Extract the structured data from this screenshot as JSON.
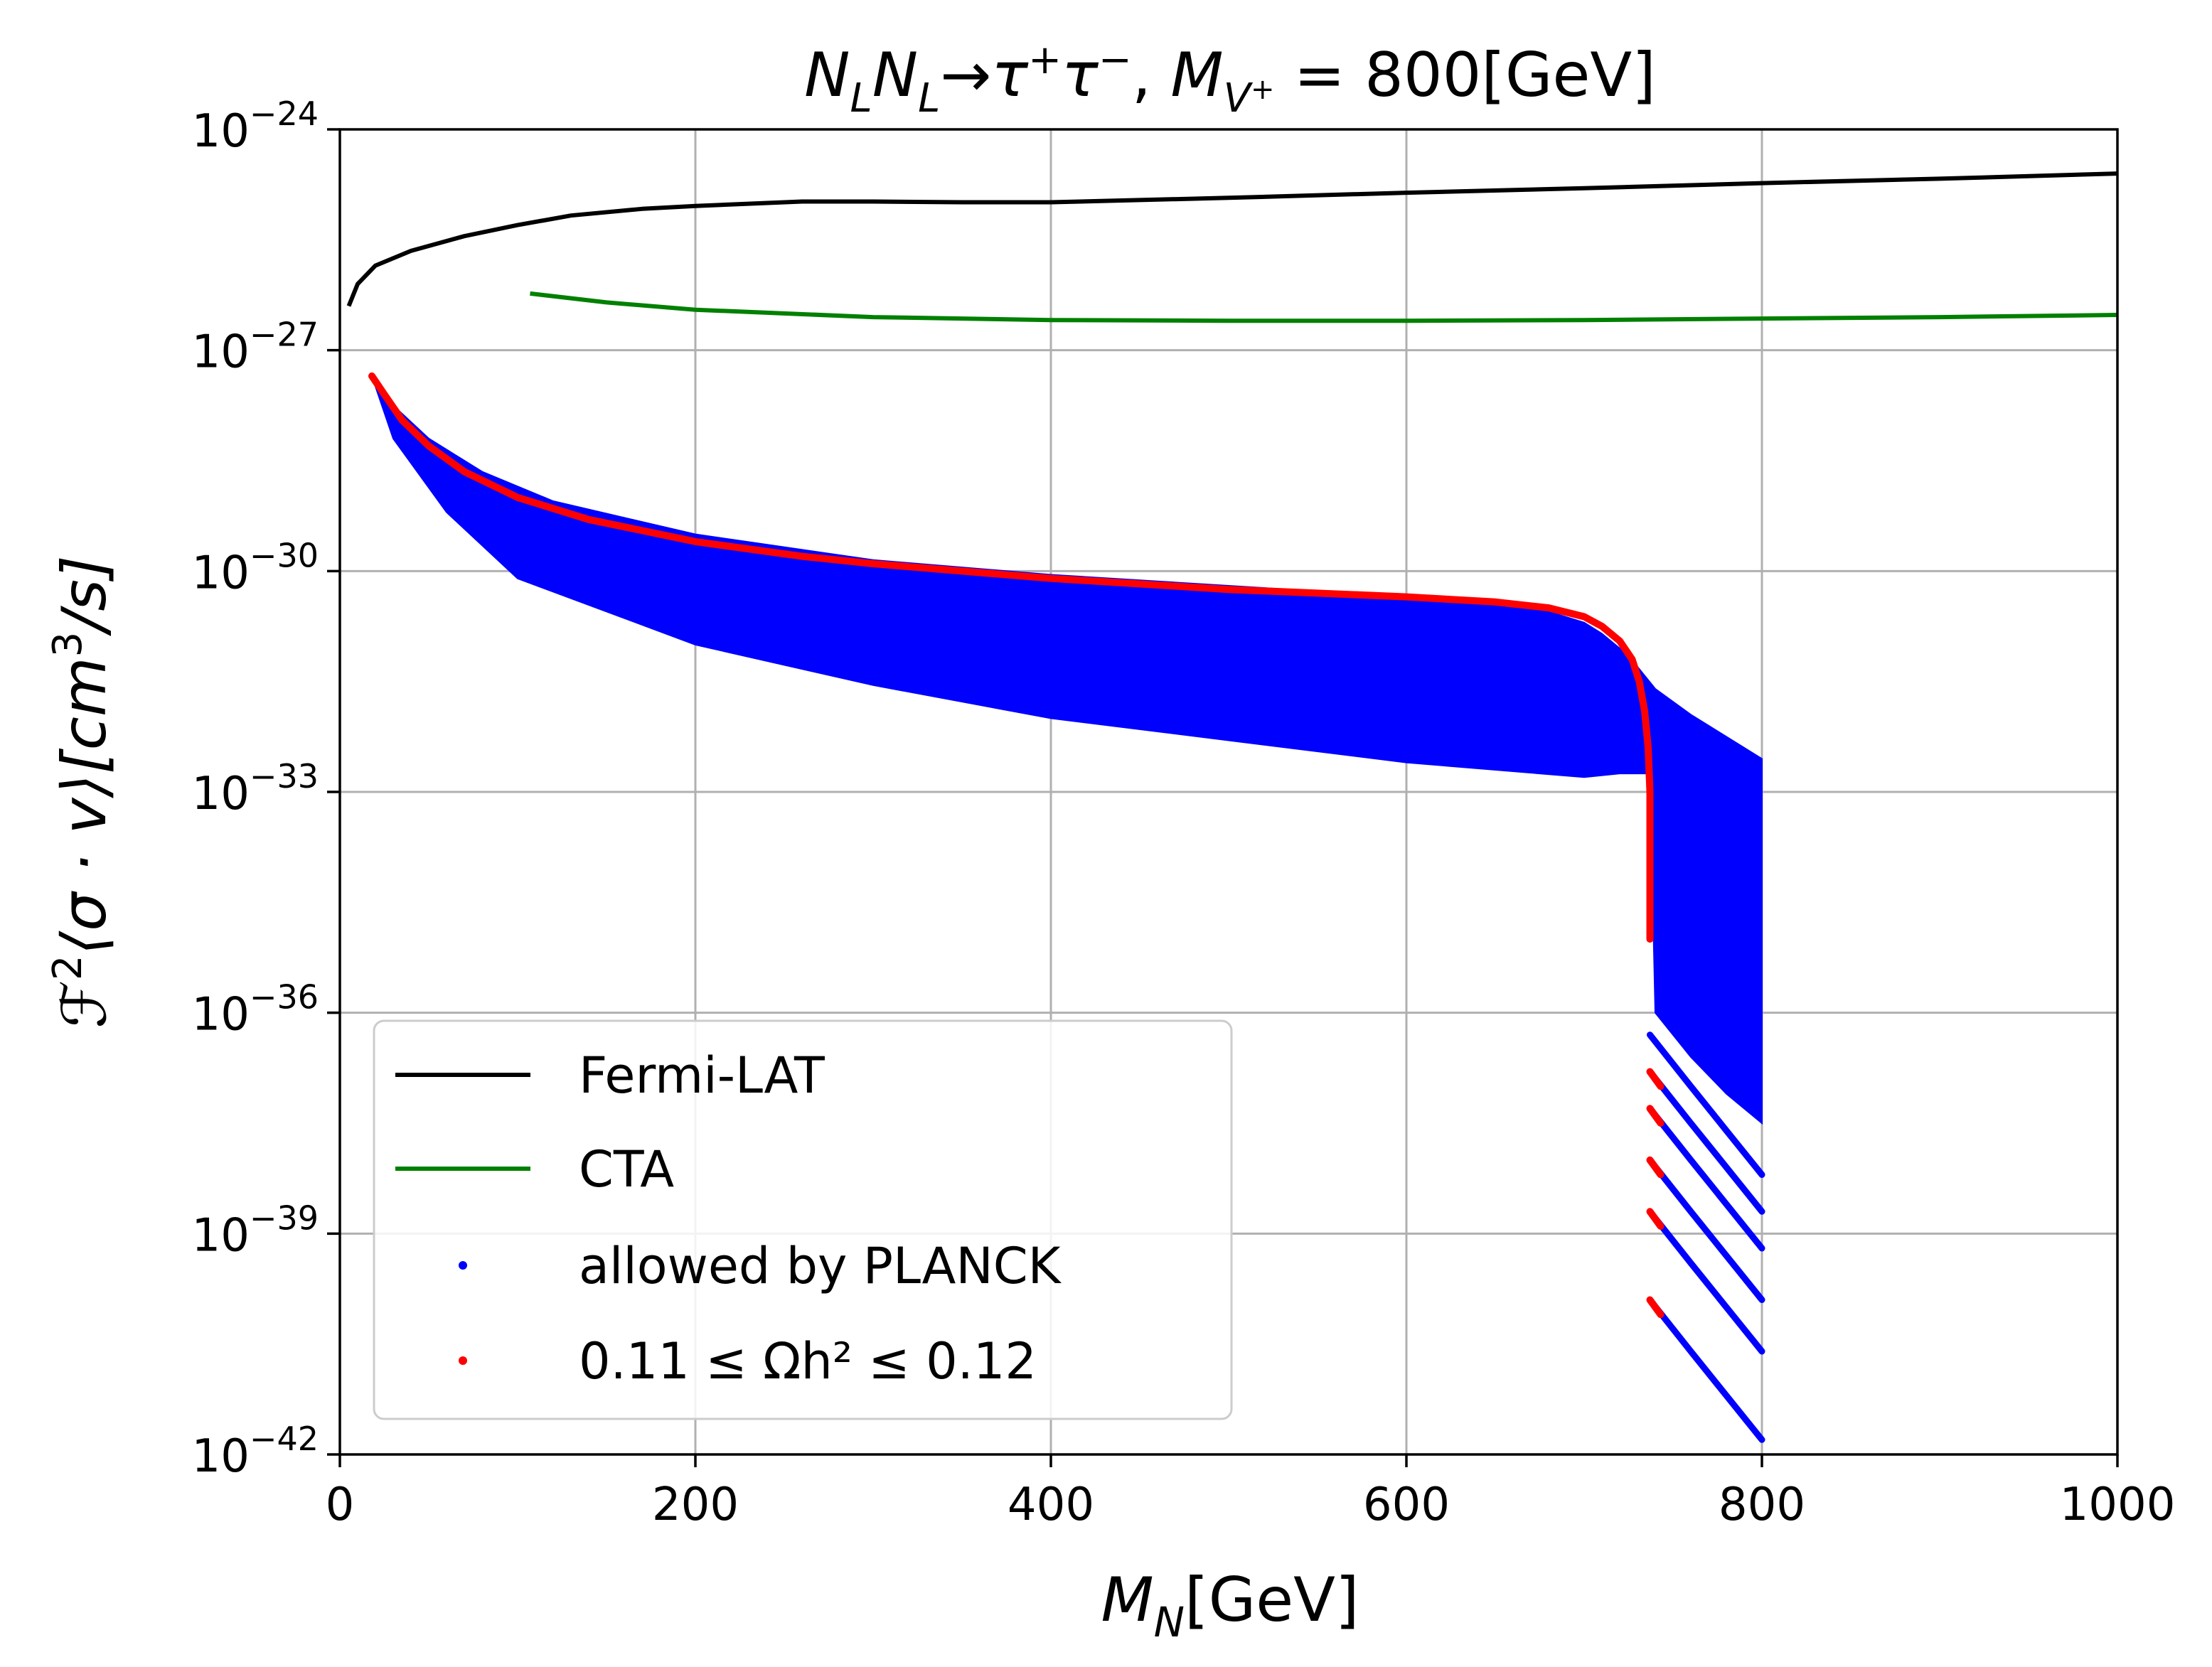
{
  "chart_data": {
    "type": "line",
    "title_parts": {
      "n1": "N",
      "n1_sub": "L",
      "n2": "N",
      "n2_sub": "L",
      "arrow": "→",
      "tau1": "τ",
      "plus": "+",
      "tau2": "τ",
      "minus": "−",
      "comma": ",",
      "m": "M",
      "m_sub": "V",
      "m_sub_sup": "+",
      "rest": " = 800[GeV]"
    },
    "xlabel_parts": {
      "m": "M",
      "sub": "N",
      "rest": "[GeV]"
    },
    "ylabel_parts": {
      "f": "ℱ",
      "f_sup": "2",
      "mid": "⟨σ · v⟩[cm",
      "cube": "3",
      "end": "/s]"
    },
    "xlim": [
      0,
      1000
    ],
    "ylim_log10": [
      -42,
      -24
    ],
    "xticks": [
      0,
      200,
      400,
      600,
      800,
      1000
    ],
    "yticks": [
      {
        "base": "10",
        "exp": "−24",
        "value": -24
      },
      {
        "base": "10",
        "exp": "−27",
        "value": -27
      },
      {
        "base": "10",
        "exp": "−30",
        "value": -30
      },
      {
        "base": "10",
        "exp": "−33",
        "value": -33
      },
      {
        "base": "10",
        "exp": "−36",
        "value": -36
      },
      {
        "base": "10",
        "exp": "−39",
        "value": -39
      },
      {
        "base": "10",
        "exp": "−42",
        "value": -42
      }
    ],
    "grid": true,
    "series": [
      {
        "name": "Fermi-LAT",
        "color": "#000000",
        "x": [
          5,
          10,
          20,
          40,
          70,
          100,
          130,
          170,
          200,
          260,
          300,
          350,
          400,
          500,
          600,
          700,
          800,
          900,
          1000
        ],
        "y_log10": [
          -26.4,
          -26.1,
          -25.85,
          -25.65,
          -25.45,
          -25.3,
          -25.17,
          -25.08,
          -25.04,
          -24.98,
          -24.98,
          -24.99,
          -24.99,
          -24.93,
          -24.86,
          -24.8,
          -24.73,
          -24.67,
          -24.6
        ]
      },
      {
        "name": "CTA",
        "color": "#008000",
        "x": [
          107,
          150,
          200,
          300,
          400,
          500,
          600,
          700,
          800,
          900,
          1000
        ],
        "y_log10": [
          -26.23,
          -26.35,
          -26.45,
          -26.55,
          -26.59,
          -26.6,
          -26.6,
          -26.59,
          -26.57,
          -26.55,
          -26.52
        ]
      },
      {
        "name": "allowed by PLANCK",
        "color": "#0000ff",
        "type": "scatter-region",
        "upper_x": [
          18,
          30,
          50,
          80,
          120,
          200,
          300,
          400,
          500,
          600,
          660,
          680,
          700,
          710,
          720,
          730,
          740,
          760,
          780,
          800,
          800
        ],
        "upper_y_log10": [
          -27.35,
          -27.75,
          -28.2,
          -28.65,
          -29.05,
          -29.5,
          -29.85,
          -30.05,
          -30.2,
          -30.35,
          -30.45,
          -30.55,
          -30.7,
          -30.85,
          -31.05,
          -31.3,
          -31.6,
          -31.95,
          -32.25,
          -32.55,
          -32.7
        ],
        "lower_x": [
          800,
          780,
          760,
          740,
          737,
          720,
          700,
          600,
          500,
          400,
          300,
          200,
          100,
          60,
          30,
          18
        ],
        "lower_y_log10": [
          -37.5,
          -37.1,
          -36.6,
          -36.0,
          -32.75,
          -32.75,
          -32.8,
          -32.6,
          -32.3,
          -32.0,
          -31.55,
          -31.0,
          -30.1,
          -29.2,
          -28.2,
          -27.35
        ],
        "branches": [
          {
            "x": [
              737,
              760,
              780,
              800
            ],
            "y_log10": [
              -39.9,
              -40.6,
              -41.2,
              -41.8
            ]
          },
          {
            "x": [
              737,
              760,
              780,
              800
            ],
            "y_log10": [
              -38.7,
              -39.4,
              -40.0,
              -40.6
            ]
          },
          {
            "x": [
              737,
              760,
              780,
              800
            ],
            "y_log10": [
              -38.0,
              -38.7,
              -39.3,
              -39.9
            ]
          },
          {
            "x": [
              737,
              760,
              780,
              800
            ],
            "y_log10": [
              -37.3,
              -38.0,
              -38.6,
              -39.2
            ]
          },
          {
            "x": [
              737,
              760,
              780,
              800
            ],
            "y_log10": [
              -36.8,
              -37.5,
              -38.1,
              -38.7
            ]
          },
          {
            "x": [
              737,
              760,
              780,
              800
            ],
            "y_log10": [
              -36.3,
              -37.0,
              -37.6,
              -38.2
            ]
          }
        ]
      },
      {
        "name": "0.11 ≤ Ωh² ≤ 0.12",
        "color": "#ff0000",
        "type": "scatter-curve",
        "x": [
          18,
          25,
          35,
          50,
          70,
          100,
          140,
          200,
          260,
          300,
          400,
          500,
          600,
          650,
          680,
          700,
          710,
          720,
          727,
          731,
          734,
          736,
          737,
          737,
          737
        ],
        "y_log10": [
          -27.35,
          -27.6,
          -27.95,
          -28.3,
          -28.65,
          -29.0,
          -29.3,
          -29.6,
          -29.8,
          -29.9,
          -30.1,
          -30.25,
          -30.35,
          -30.42,
          -30.5,
          -30.62,
          -30.75,
          -30.95,
          -31.2,
          -31.5,
          -31.9,
          -32.4,
          -33.0,
          -34.0,
          -35.0
        ],
        "branch_starts": [
          {
            "x": 737,
            "y_log10": -39.9
          },
          {
            "x": 737,
            "y_log10": -38.7
          },
          {
            "x": 737,
            "y_log10": -38.0
          },
          {
            "x": 737,
            "y_log10": -37.3
          },
          {
            "x": 737,
            "y_log10": -36.8
          }
        ]
      }
    ],
    "legend": {
      "position": "lower-left",
      "entries": [
        {
          "label": "Fermi-LAT",
          "marker": "line",
          "color": "#000000"
        },
        {
          "label": "CTA",
          "marker": "line",
          "color": "#008000"
        },
        {
          "label": "allowed by PLANCK",
          "marker": "dot",
          "color": "#0000ff"
        },
        {
          "label": "0.11 ≤ Ωh² ≤ 0.12",
          "marker": "dot",
          "color": "#ff0000"
        }
      ]
    }
  }
}
